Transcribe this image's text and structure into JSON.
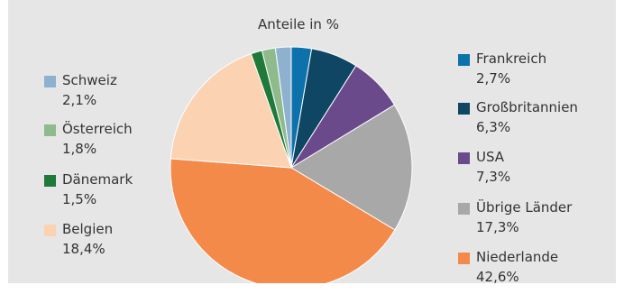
{
  "chart_data": {
    "type": "pie",
    "title": "Anteile in %",
    "slices": [
      {
        "label": "Frankreich",
        "value": 2.7,
        "display": "2,7%",
        "color": "#0d72ac"
      },
      {
        "label": "Großbritannien",
        "value": 6.3,
        "display": "6,3%",
        "color": "#0f4664"
      },
      {
        "label": "USA",
        "value": 7.3,
        "display": "7,3%",
        "color": "#6b4a8b"
      },
      {
        "label": "Übrige Länder",
        "value": 17.3,
        "display": "17,3%",
        "color": "#a8a8a8"
      },
      {
        "label": "Niederlande",
        "value": 42.6,
        "display": "42,6%",
        "color": "#f48a4a"
      },
      {
        "label": "Belgien",
        "value": 18.4,
        "display": "18,4%",
        "color": "#fbd2b2"
      },
      {
        "label": "Dänemark",
        "value": 1.5,
        "display": "1,5%",
        "color": "#1f7a3a"
      },
      {
        "label": "Österreich",
        "value": 1.8,
        "display": "1,8%",
        "color": "#8fba8c"
      },
      {
        "label": "Schweiz",
        "value": 2.1,
        "display": "2,1%",
        "color": "#8db1cf"
      }
    ],
    "legend": {
      "left": [
        "Schweiz",
        "Österreich",
        "Dänemark",
        "Belgien"
      ],
      "right": [
        "Frankreich",
        "Großbritannien",
        "USA",
        "Übrige Länder",
        "Niederlande"
      ]
    }
  }
}
